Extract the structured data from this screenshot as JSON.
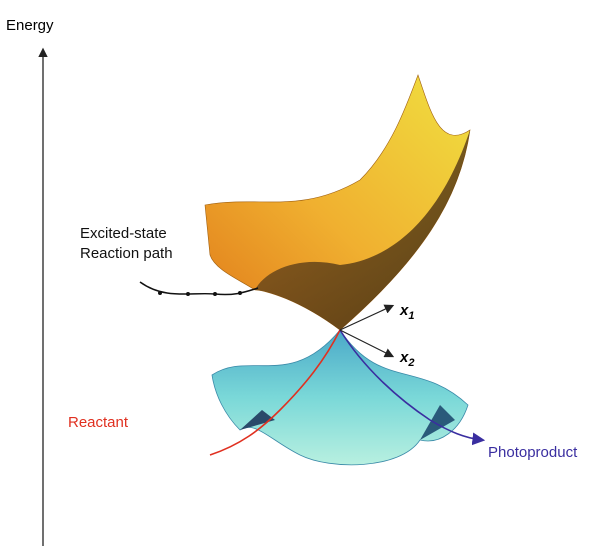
{
  "axis": {
    "label": "Energy"
  },
  "labels": {
    "excited_path": [
      "Excited-state",
      "Reaction path"
    ],
    "reactant": "Reactant",
    "photoproduct": "Photoproduct"
  },
  "vectors": [
    {
      "base": "x",
      "sub": "1"
    },
    {
      "base": "x",
      "sub": "2"
    }
  ]
}
